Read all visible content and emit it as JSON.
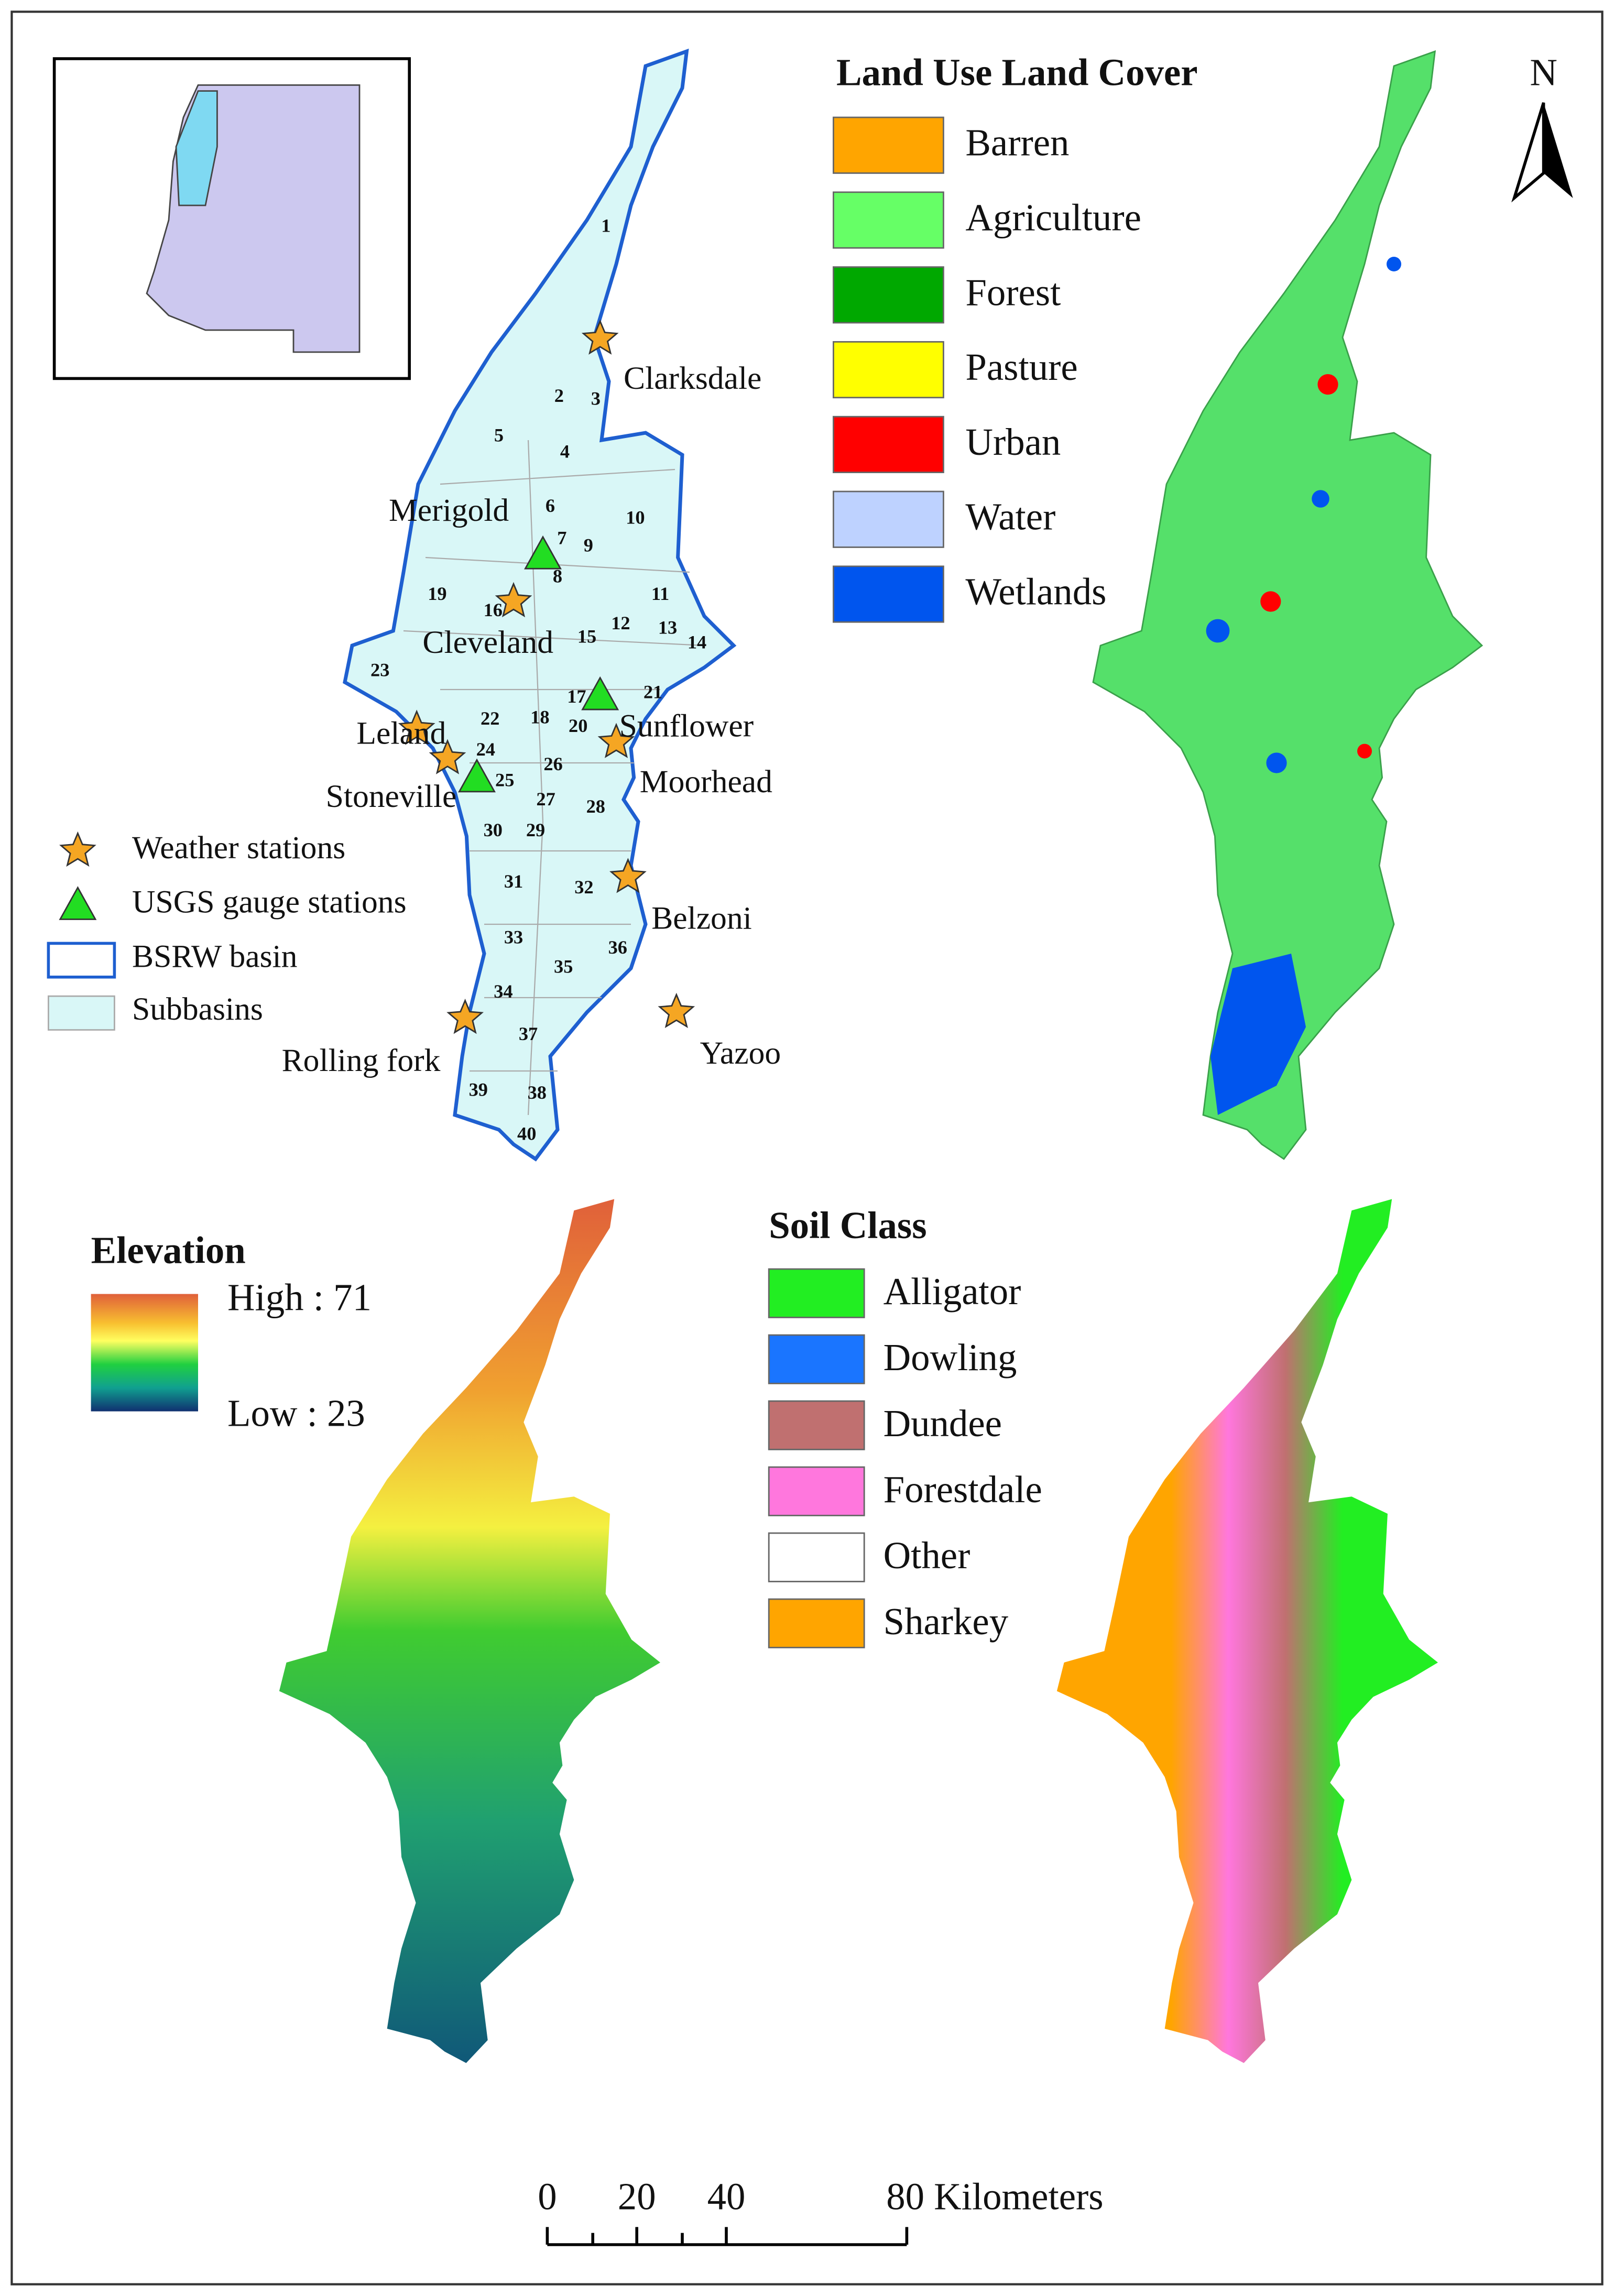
{
  "basin_map": {
    "subbasins": [
      "1",
      "2",
      "3",
      "4",
      "5",
      "6",
      "7",
      "8",
      "9",
      "10",
      "11",
      "12",
      "13",
      "14",
      "15",
      "16",
      "17",
      "18",
      "19",
      "20",
      "21",
      "22",
      "23",
      "24",
      "25",
      "26",
      "27",
      "28",
      "29",
      "30",
      "31",
      "32",
      "33",
      "34",
      "35",
      "36",
      "37",
      "38",
      "39",
      "40"
    ],
    "stations": [
      "Clarksdale",
      "Merigold",
      "Cleveland",
      "Leland",
      "Stoneville",
      "Sunflower",
      "Moorhead",
      "Belzoni",
      "Yazoo",
      "Rolling fork"
    ],
    "legend": [
      "Weather stations",
      "USGS gauge stations",
      "BSRW basin",
      "Subbasins"
    ]
  },
  "land_use": {
    "title": "Land Use Land Cover",
    "classes": [
      {
        "label": "Barren",
        "color": "#ffa500"
      },
      {
        "label": "Agriculture",
        "color": "#66ff66"
      },
      {
        "label": "Forest",
        "color": "#00a800"
      },
      {
        "label": "Pasture",
        "color": "#ffff00"
      },
      {
        "label": "Urban",
        "color": "#ff0000"
      },
      {
        "label": "Water",
        "color": "#bed2ff"
      },
      {
        "label": "Wetlands",
        "color": "#0055ee"
      }
    ]
  },
  "elevation": {
    "title": "Elevation",
    "high_label": "High : 71",
    "low_label": "Low : 23"
  },
  "soil": {
    "title": "Soil Class",
    "classes": [
      {
        "label": "Alligator",
        "color": "#22ee22"
      },
      {
        "label": "Dowling",
        "color": "#1a75ff"
      },
      {
        "label": "Dundee",
        "color": "#c07070"
      },
      {
        "label": "Forestdale",
        "color": "#ff77dd"
      },
      {
        "label": "Other",
        "color": "#ffffff"
      },
      {
        "label": "Sharkey",
        "color": "#ffa500"
      }
    ]
  },
  "scale_bar": {
    "labels": [
      "0",
      "20",
      "40",
      "80 Kilometers"
    ]
  },
  "north_arrow": {
    "label": "N"
  }
}
